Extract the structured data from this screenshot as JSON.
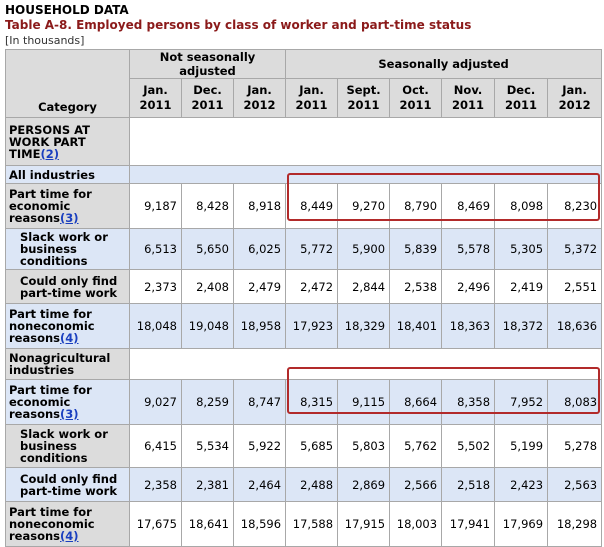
{
  "header": {
    "section": "HOUSEHOLD DATA",
    "title": "Table A-8. Employed persons by class of worker and part-time status",
    "units": "[In thousands]"
  },
  "columns": {
    "category_label": "Category",
    "groups": [
      "Not seasonally adjusted",
      "Seasonally adjusted"
    ],
    "dates": [
      {
        "month": "Jan.",
        "year": "2011"
      },
      {
        "month": "Dec.",
        "year": "2011"
      },
      {
        "month": "Jan.",
        "year": "2012"
      },
      {
        "month": "Jan.",
        "year": "2011"
      },
      {
        "month": "Sept.",
        "year": "2011"
      },
      {
        "month": "Oct.",
        "year": "2011"
      },
      {
        "month": "Nov.",
        "year": "2011"
      },
      {
        "month": "Dec.",
        "year": "2011"
      },
      {
        "month": "Jan.",
        "year": "2012"
      }
    ]
  },
  "sections": {
    "persons_at_work": "PERSONS AT WORK PART TIME",
    "persons_at_work_fn": "(2)",
    "all_industries": "All industries",
    "nonag": "Nonagricultural industries"
  },
  "rows": [
    {
      "label": "Part time for economic reasons",
      "fn": "(3)",
      "values": [
        "9,187",
        "8,428",
        "8,918",
        "8,449",
        "9,270",
        "8,790",
        "8,469",
        "8,098",
        "8,230"
      ]
    },
    {
      "label": "Slack work or business conditions",
      "fn": "",
      "values": [
        "6,513",
        "5,650",
        "6,025",
        "5,772",
        "5,900",
        "5,839",
        "5,578",
        "5,305",
        "5,372"
      ]
    },
    {
      "label": "Could only find part-time work",
      "fn": "",
      "values": [
        "2,373",
        "2,408",
        "2,479",
        "2,472",
        "2,844",
        "2,538",
        "2,496",
        "2,419",
        "2,551"
      ]
    },
    {
      "label": "Part time for noneconomic reasons",
      "fn": "(4)",
      "values": [
        "18,048",
        "19,048",
        "18,958",
        "17,923",
        "18,329",
        "18,401",
        "18,363",
        "18,372",
        "18,636"
      ]
    },
    {
      "label": "Part time for economic reasons",
      "fn": "(3)",
      "values": [
        "9,027",
        "8,259",
        "8,747",
        "8,315",
        "9,115",
        "8,664",
        "8,358",
        "7,952",
        "8,083"
      ]
    },
    {
      "label": "Slack work or business conditions",
      "fn": "",
      "values": [
        "6,415",
        "5,534",
        "5,922",
        "5,685",
        "5,803",
        "5,762",
        "5,502",
        "5,199",
        "5,278"
      ]
    },
    {
      "label": "Could only find part-time work",
      "fn": "",
      "values": [
        "2,358",
        "2,381",
        "2,464",
        "2,488",
        "2,869",
        "2,566",
        "2,518",
        "2,423",
        "2,563"
      ]
    },
    {
      "label": "Part time for noneconomic reasons",
      "fn": "(4)",
      "values": [
        "17,675",
        "18,641",
        "18,596",
        "17,588",
        "17,915",
        "18,003",
        "17,941",
        "17,969",
        "18,298"
      ]
    }
  ],
  "colors": {
    "highlight": "#b22a2a",
    "row_blue": "#dce6f6",
    "header_gray": "#dcdcdc",
    "title_red": "#8b1a1a"
  }
}
